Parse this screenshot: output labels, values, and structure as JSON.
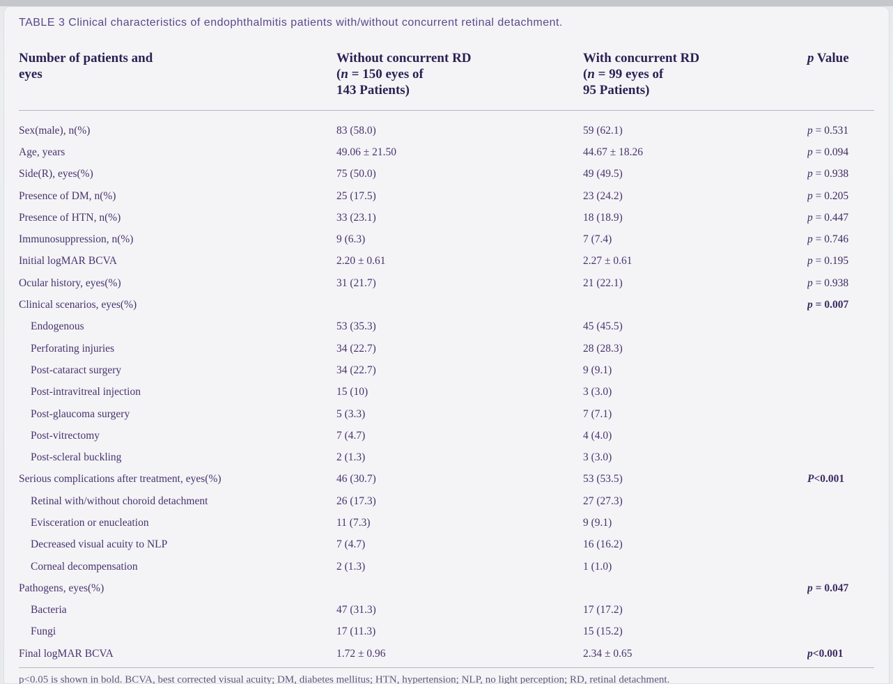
{
  "caption": "TABLE 3 Clinical characteristics of endophthalmitis patients with/without concurrent retinal detachment.",
  "colors": {
    "page_background": "#f4f4f7",
    "caption_text": "#5a4788",
    "header_text": "#2d2153",
    "body_text": "#47336c",
    "rule": "#b4b8c3"
  },
  "table": {
    "header": {
      "col1": {
        "line1": "Number of patients and",
        "line2": "eyes"
      },
      "col2": {
        "line1": "Without concurrent RD",
        "line2_pre": "(",
        "line2_it": "n",
        "line2_mid": " = 150 eyes of",
        "line3": "143 Patients)"
      },
      "col3": {
        "line1": "With concurrent RD",
        "line2_pre": "(",
        "line2_it": "n",
        "line2_mid": " = 99 eyes of",
        "line3": "95 Patients)"
      },
      "col4": {
        "it": "p",
        "rest": " Value"
      }
    },
    "rows": [
      {
        "label": "Sex(male), n(%)",
        "indent": false,
        "without_rd": "83 (58.0)",
        "with_rd": "59 (62.1)",
        "p_sym": "p",
        "p_rest": " = 0.531",
        "p_bold": false
      },
      {
        "label": "Age, years",
        "indent": false,
        "without_rd": "49.06 ± 21.50",
        "with_rd": "44.67 ± 18.26",
        "p_sym": "p",
        "p_rest": " = 0.094",
        "p_bold": false
      },
      {
        "label": "Side(R), eyes(%)",
        "indent": false,
        "without_rd": "75 (50.0)",
        "with_rd": "49 (49.5)",
        "p_sym": "p",
        "p_rest": " = 0.938",
        "p_bold": false
      },
      {
        "label": "Presence of DM, n(%)",
        "indent": false,
        "without_rd": "25 (17.5)",
        "with_rd": "23 (24.2)",
        "p_sym": "p",
        "p_rest": " = 0.205",
        "p_bold": false
      },
      {
        "label": "Presence of HTN, n(%)",
        "indent": false,
        "without_rd": "33 (23.1)",
        "with_rd": "18 (18.9)",
        "p_sym": "p",
        "p_rest": " = 0.447",
        "p_bold": false
      },
      {
        "label": "Immunosuppression, n(%)",
        "indent": false,
        "without_rd": "9 (6.3)",
        "with_rd": "7 (7.4)",
        "p_sym": "p",
        "p_rest": " = 0.746",
        "p_bold": false
      },
      {
        "label": "Initial logMAR BCVA",
        "indent": false,
        "without_rd": "2.20 ± 0.61",
        "with_rd": "2.27 ± 0.61",
        "p_sym": "p",
        "p_rest": " = 0.195",
        "p_bold": false
      },
      {
        "label": "Ocular history, eyes(%)",
        "indent": false,
        "without_rd": "31 (21.7)",
        "with_rd": "21 (22.1)",
        "p_sym": "p",
        "p_rest": " = 0.938",
        "p_bold": false
      },
      {
        "label": "Clinical scenarios, eyes(%)",
        "indent": false,
        "without_rd": "",
        "with_rd": "",
        "p_sym": "p",
        "p_rest": " = 0.007",
        "p_bold": true
      },
      {
        "label": "Endogenous",
        "indent": true,
        "without_rd": "53 (35.3)",
        "with_rd": "45 (45.5)",
        "p_sym": "",
        "p_rest": "",
        "p_bold": false
      },
      {
        "label": "Perforating injuries",
        "indent": true,
        "without_rd": "34 (22.7)",
        "with_rd": "28 (28.3)",
        "p_sym": "",
        "p_rest": "",
        "p_bold": false
      },
      {
        "label": "Post-cataract surgery",
        "indent": true,
        "without_rd": "34 (22.7)",
        "with_rd": "9 (9.1)",
        "p_sym": "",
        "p_rest": "",
        "p_bold": false
      },
      {
        "label": "Post-intravitreal injection",
        "indent": true,
        "without_rd": "15 (10)",
        "with_rd": "3 (3.0)",
        "p_sym": "",
        "p_rest": "",
        "p_bold": false
      },
      {
        "label": "Post-glaucoma surgery",
        "indent": true,
        "without_rd": "5 (3.3)",
        "with_rd": "7 (7.1)",
        "p_sym": "",
        "p_rest": "",
        "p_bold": false
      },
      {
        "label": "Post-vitrectomy",
        "indent": true,
        "without_rd": "7 (4.7)",
        "with_rd": "4 (4.0)",
        "p_sym": "",
        "p_rest": "",
        "p_bold": false
      },
      {
        "label": "Post-scleral buckling",
        "indent": true,
        "without_rd": "2 (1.3)",
        "with_rd": "3 (3.0)",
        "p_sym": "",
        "p_rest": "",
        "p_bold": false
      },
      {
        "label": "Serious complications after treatment, eyes(%)",
        "indent": false,
        "without_rd": "46 (30.7)",
        "with_rd": "53 (53.5)",
        "p_sym": "P",
        "p_rest": "<0.001",
        "p_bold": true
      },
      {
        "label": "Retinal with/without choroid detachment",
        "indent": true,
        "without_rd": "26 (17.3)",
        "with_rd": "27 (27.3)",
        "p_sym": "",
        "p_rest": "",
        "p_bold": false
      },
      {
        "label": "Evisceration or enucleation",
        "indent": true,
        "without_rd": "11 (7.3)",
        "with_rd": "9 (9.1)",
        "p_sym": "",
        "p_rest": "",
        "p_bold": false
      },
      {
        "label": "Decreased visual acuity to NLP",
        "indent": true,
        "without_rd": "7 (4.7)",
        "with_rd": "16 (16.2)",
        "p_sym": "",
        "p_rest": "",
        "p_bold": false
      },
      {
        "label": "Corneal decompensation",
        "indent": true,
        "without_rd": "2 (1.3)",
        "with_rd": "1 (1.0)",
        "p_sym": "",
        "p_rest": "",
        "p_bold": false
      },
      {
        "label": "Pathogens, eyes(%)",
        "indent": false,
        "without_rd": "",
        "with_rd": "",
        "p_sym": "p",
        "p_rest": " = 0.047",
        "p_bold": true
      },
      {
        "label": "Bacteria",
        "indent": true,
        "without_rd": "47 (31.3)",
        "with_rd": "17 (17.2)",
        "p_sym": "",
        "p_rest": "",
        "p_bold": false
      },
      {
        "label": "Fungi",
        "indent": true,
        "without_rd": "17 (11.3)",
        "with_rd": "15 (15.2)",
        "p_sym": "",
        "p_rest": "",
        "p_bold": false
      },
      {
        "label": "Final logMAR BCVA",
        "indent": false,
        "without_rd": "1.72 ± 0.96",
        "with_rd": "2.34 ± 0.65",
        "p_sym": "p",
        "p_rest": "<0.001",
        "p_bold": true
      }
    ]
  },
  "footnote": "p<0.05 is shown in bold. BCVA, best corrected visual acuity; DM, diabetes mellitus; HTN, hypertension; NLP, no light perception; RD, retinal detachment."
}
